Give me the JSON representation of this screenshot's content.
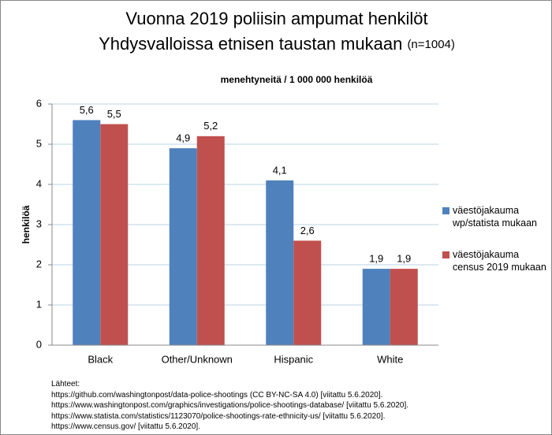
{
  "chart_data": {
    "type": "bar",
    "title": [
      "Vuonna 2019 poliisin ampumat henkilöt",
      "Yhdysvalloissa etnisen taustan mukaan"
    ],
    "title_note": "(n=1004)",
    "subtitle": "menehtyneitä / 1 000 000 henkilöä",
    "y_label": "henkilöä",
    "categories": [
      "Black",
      "Other/Unknown",
      "Hispanic",
      "White"
    ],
    "series": [
      {
        "name": "väestöjakauma wp/statista mukaan",
        "color": "#4f81bd",
        "values": [
          5.6,
          4.9,
          4.1,
          1.9
        ],
        "value_labels": [
          "5,6",
          "4,9",
          "4,1",
          "1,9"
        ]
      },
      {
        "name": "väestöjakauma census 2019 mukaan",
        "color": "#c0504d",
        "values": [
          5.5,
          5.2,
          2.6,
          1.9
        ],
        "value_labels": [
          "5,5",
          "5,2",
          "2,6",
          "1,9"
        ]
      }
    ],
    "ylim": [
      0,
      6
    ],
    "yticks": [
      0,
      1,
      2,
      3,
      4,
      5,
      6
    ],
    "grid": true,
    "legend": "right",
    "sources_title": "Lähteet:",
    "sources": [
      "https://github.com/washingtonpost/data-police-shootings  (CC BY-NC-SA 4.0) [viitattu 5.6.2020].",
      "https://www.washingtonpost.com/graphics/investigations/police-shootings-database/ [viitattu 5.6.2020].",
      "https://www.statista.com/statistics/1123070/police-shootings-rate-ethnicity-us/ [viitattu 5.6.2020].",
      "https://www.census.gov/ [viitattu 5.6.2020]."
    ]
  }
}
